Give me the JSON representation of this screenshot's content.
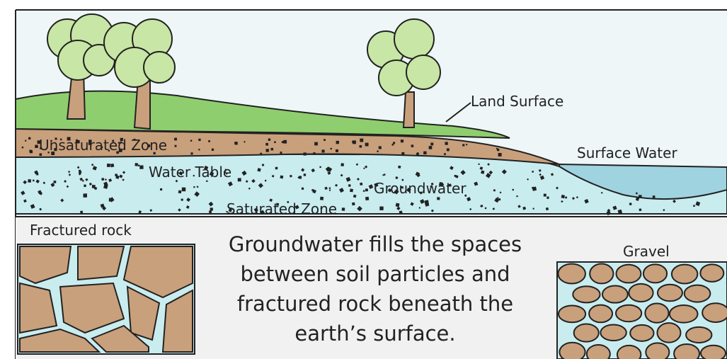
{
  "labels": {
    "land_surface": "Land Surface",
    "unsaturated_zone": "Unsaturated Zone",
    "surface_water": "Surface Water",
    "water_table": "Water Table",
    "groundwater": "Groundwater",
    "saturated_zone": "Saturated Zone",
    "fractured_rock": "Fractured rock",
    "gravel": "Gravel"
  },
  "caption": [
    "Groundwater fills the spaces",
    "between soil particles and",
    "fractured rock beneath the",
    "earth’s surface."
  ]
}
